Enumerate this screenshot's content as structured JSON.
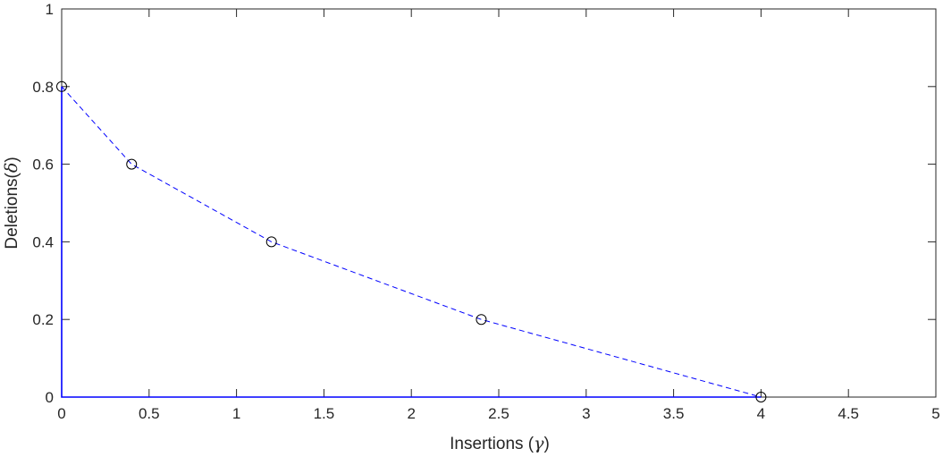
{
  "chart_data": {
    "type": "line",
    "title": "",
    "xlabel": {
      "prefix": "Insertions (",
      "symbol": "γ",
      "suffix": ")"
    },
    "ylabel": {
      "prefix": "Deletions(",
      "symbol": "δ",
      "suffix": ")"
    },
    "xlim": [
      0,
      5
    ],
    "ylim": [
      0,
      1
    ],
    "xticks": [
      0,
      0.5,
      1,
      1.5,
      2,
      2.5,
      3,
      3.5,
      4,
      4.5,
      5
    ],
    "xtick_labels": [
      "0",
      "0.5",
      "1",
      "1.5",
      "2",
      "2.5",
      "3",
      "3.5",
      "4",
      "4.5",
      "5"
    ],
    "yticks": [
      0,
      0.2,
      0.4,
      0.6,
      0.8,
      1
    ],
    "ytick_labels": [
      "0",
      "0.2",
      "0.4",
      "0.6",
      "0.8",
      "1"
    ],
    "grid": false,
    "box": true,
    "series": [
      {
        "style": "dashed-line",
        "color": "#0000ff",
        "x": [
          0,
          0.4,
          1.2,
          2.4,
          4
        ],
        "y": [
          0.8,
          0.6,
          0.4,
          0.2,
          0
        ]
      },
      {
        "style": "circle-markers",
        "color": "#000000",
        "x": [
          0,
          0.4,
          1.2,
          2.4,
          4
        ],
        "y": [
          0.8,
          0.6,
          0.4,
          0.2,
          0
        ]
      },
      {
        "style": "solid-line",
        "color": "#0000ff",
        "x": [
          0,
          0,
          4
        ],
        "y": [
          0.8,
          0,
          0
        ]
      }
    ],
    "colors": {
      "axis": "#262626",
      "dashed_series": "#0000ff",
      "markers": "#000000",
      "boundary": "#0000ff"
    }
  }
}
